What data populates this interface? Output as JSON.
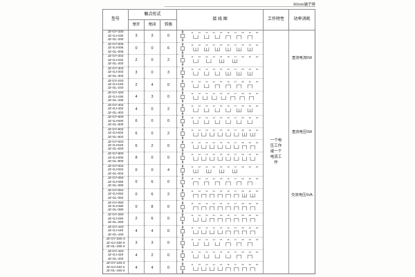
{
  "page": {
    "top_right_note": "60mm端子排"
  },
  "table": {
    "headers": {
      "model": "型号",
      "contact_form": "触点形式",
      "contact_no": "常开",
      "contact_nc": "常闭",
      "contact_co": "转换",
      "wiring_diagram": "接 线 图",
      "working_characteristics": "工作特性",
      "power_consumption": "功率消耗"
    },
    "working_characteristics_text": "一个电压工作或一个电流工作",
    "power_notes": [
      {
        "label": "直流电流5W",
        "top_pct": 10.5
      },
      {
        "label": "直流电压5W",
        "top_pct": 41.0
      },
      {
        "label": "交流电压5VA",
        "top_pct": 67.0
      }
    ],
    "terminal_numbers": [
      "11",
      "12",
      "13",
      "14",
      "15",
      "16",
      "17",
      "18",
      "19",
      "20"
    ],
    "rows": [
      {
        "models": [
          "JZ-GY-330",
          "JZ-GJ-330",
          "JZ-GL-330"
        ],
        "no": "3",
        "nc": "3",
        "co": "0"
      },
      {
        "models": [
          "JZ-GY-006",
          "JZ-GJ-006",
          "JZ-GL-006"
        ],
        "no": "0",
        "nc": "0",
        "co": "6"
      },
      {
        "models": [
          "JZ-GY-202",
          "JZ-GJ-202",
          "JZ-GL-202"
        ],
        "no": "2",
        "nc": "0",
        "co": "2"
      },
      {
        "models": [
          "JZ-GY-303",
          "JZ-GJ-303",
          "JZ-GL-303"
        ],
        "no": "3",
        "nc": "0",
        "co": "3"
      },
      {
        "models": [
          "JZ-GY-240",
          "JZ-GJ-240",
          "JZ-GL-240"
        ],
        "no": "2",
        "nc": "4",
        "co": "0"
      },
      {
        "models": [
          "JZ-GY-430",
          "JZ-GJ-430",
          "JZ-GL-430"
        ],
        "no": "4",
        "nc": "3",
        "co": "0"
      },
      {
        "models": [
          "JZ-GY-402",
          "JZ-GJ-402",
          "JZ-GL-402"
        ],
        "no": "4",
        "nc": "0",
        "co": "2"
      },
      {
        "models": [
          "JZ-GY-600",
          "JZ-GJ-600",
          "JZ-GL-600"
        ],
        "no": "6",
        "nc": "0",
        "co": "0"
      },
      {
        "models": [
          "JZ-GY-602",
          "JZ-GJ-602",
          "JZ-GL-602"
        ],
        "no": "6",
        "nc": "0",
        "co": "2"
      },
      {
        "models": [
          "JZ-GY-620",
          "JZ-GJ-620",
          "JZ-GL-620"
        ],
        "no": "6",
        "nc": "2",
        "co": "0"
      },
      {
        "models": [
          "JZ-GY-800",
          "JZ-GJ-800",
          "JZ-GL-800"
        ],
        "no": "8",
        "nc": "0",
        "co": "0"
      },
      {
        "models": [
          "JZ-GY-004",
          "JZ-GJ-004",
          "JZ-GL-004"
        ],
        "no": "0",
        "nc": "0",
        "co": "4"
      },
      {
        "models": [
          "JZ-GY-060",
          "JZ-GJ-060",
          "JZ-GL-060"
        ],
        "no": "0",
        "nc": "6",
        "co": "0"
      },
      {
        "models": [
          "JZ-GY-062",
          "JZ-GJ-062",
          "JZ-GL-062"
        ],
        "no": "0",
        "nc": "6",
        "co": "2"
      },
      {
        "models": [
          "JZ-GY-080",
          "JZ-GJ-080",
          "JZ-GL-080"
        ],
        "no": "0",
        "nc": "8",
        "co": "0"
      },
      {
        "models": [
          "JZ-GY-260",
          "JZ-GJ-260",
          "JZ-GL-260"
        ],
        "no": "2",
        "nc": "6",
        "co": "0"
      },
      {
        "models": [
          "JZ-GY-440",
          "JZ-GJ-440",
          "JZ-GL-440"
        ],
        "no": "4",
        "nc": "4",
        "co": "0"
      },
      {
        "models": [
          "JZ-GY-330-3",
          "JZ-GJ-330-3",
          "JZ-GL-330-3"
        ],
        "no": "3",
        "nc": "3",
        "co": "0"
      },
      {
        "models": [
          "JZ-GY-420",
          "JZ-GJ-420",
          "JZ-GL-420"
        ],
        "no": "4",
        "nc": "2",
        "co": "0"
      },
      {
        "models": [
          "JZ-GY-440-2",
          "JZ-GJ-440-2",
          "JZ-GL-440-2"
        ],
        "no": "4",
        "nc": "4",
        "co": "0"
      }
    ]
  }
}
